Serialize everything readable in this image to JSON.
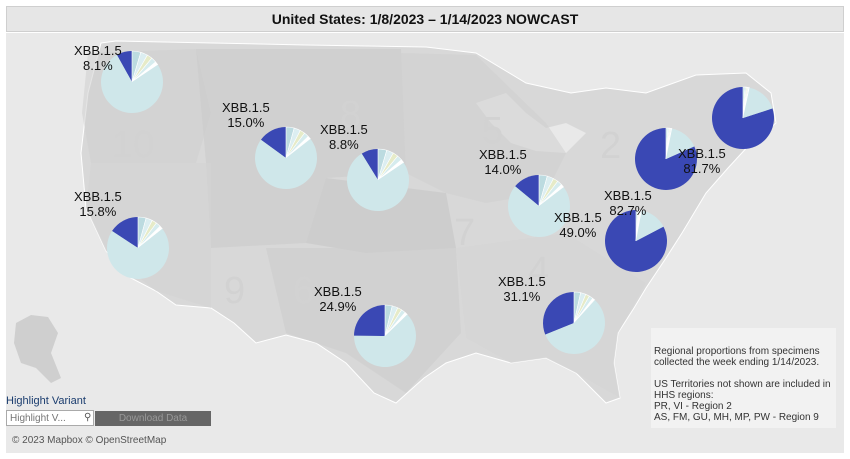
{
  "title": "United States: 1/8/2023 – 1/14/2023 NOWCAST",
  "colors": {
    "xbb": "#3a48b4",
    "other": "#cfe7ea",
    "slices": [
      "#bcdbe0",
      "#dceef1",
      "#e6ebc8",
      "#d6ecee",
      "#ffffff"
    ],
    "land": "#d8d8d8",
    "region_fill": "#cfcfcf",
    "water": "#e9e9e9"
  },
  "hhs_regions": [
    {
      "region": "10",
      "label": "10"
    },
    {
      "region": "8",
      "label": "8"
    },
    {
      "region": "5",
      "label": "5"
    },
    {
      "region": "2",
      "label": "2"
    },
    {
      "region": "7",
      "label": "7"
    },
    {
      "region": "9",
      "label": "9"
    },
    {
      "region": "6",
      "label": "6"
    },
    {
      "region": "4",
      "label": "4"
    }
  ],
  "pies": [
    {
      "region": "10",
      "variant": "XBB.1.5",
      "value_label": "8.1%",
      "xbb_share": 0.081,
      "show_label": true
    },
    {
      "region": "8",
      "variant": "XBB.1.5",
      "value_label": "15.0%",
      "xbb_share": 0.15,
      "show_label": true
    },
    {
      "region": "7",
      "variant": "XBB.1.5",
      "value_label": "8.8%",
      "xbb_share": 0.088,
      "show_label": true
    },
    {
      "region": "5",
      "variant": "XBB.1.5",
      "value_label": "14.0%",
      "xbb_share": 0.14,
      "show_label": true
    },
    {
      "region": "1",
      "variant": "",
      "value_label": "",
      "xbb_share": 0.8,
      "show_label": false
    },
    {
      "region": "2",
      "variant": "XBB.1.5",
      "value_label": "81.7%",
      "xbb_share": 0.817,
      "show_label": true
    },
    {
      "region": "9",
      "variant": "XBB.1.5",
      "value_label": "15.8%",
      "xbb_share": 0.158,
      "show_label": true
    },
    {
      "region": "3",
      "variant": "XBB.1.5",
      "value_label": "82.7%",
      "xbb_share": 0.827,
      "show_label": true
    },
    {
      "region": "3b",
      "variant": "XBB.1.5",
      "value_label": "49.0%",
      "xbb_share": 0.49,
      "show_label": true
    },
    {
      "region": "6",
      "variant": "XBB.1.5",
      "value_label": "24.9%",
      "xbb_share": 0.249,
      "show_label": true
    },
    {
      "region": "4",
      "variant": "XBB.1.5",
      "value_label": "31.1%",
      "xbb_share": 0.311,
      "show_label": true
    }
  ],
  "info": {
    "line1": "Regional proportions from specimens\ncollected the week ending 1/14/2023.",
    "line2": "US Territories not shown are included in\nHHS regions:\nPR, VI - Region 2\nAS, FM, GU, MH, MP, PW - Region 9"
  },
  "controls": {
    "highlight_label": "Highlight Variant",
    "highlight_placeholder": "Highlight V...",
    "download_label": "Download Data"
  },
  "attribution": "© 2023 Mapbox © OpenStreetMap"
}
